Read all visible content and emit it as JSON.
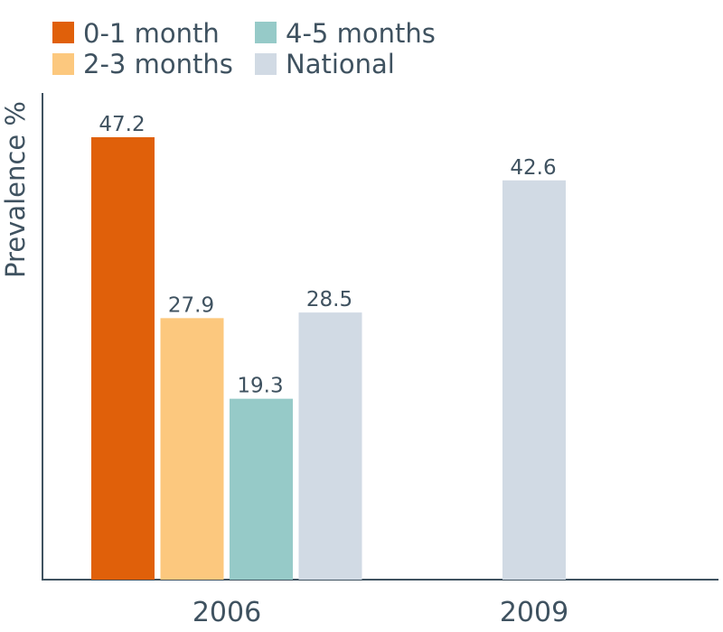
{
  "chart_data": {
    "type": "bar",
    "ylabel": "Prevalence %",
    "categories": [
      "2006",
      "2009"
    ],
    "ylim": [
      0,
      55
    ],
    "grid": false,
    "legend_position": "top-left",
    "series": [
      {
        "name": "0-1 month",
        "color": "#e0600a",
        "values": [
          47.2,
          null
        ]
      },
      {
        "name": "2-3 months",
        "color": "#fcc87e",
        "values": [
          27.9,
          null
        ]
      },
      {
        "name": "4-5 months",
        "color": "#96cac8",
        "values": [
          19.3,
          null
        ]
      },
      {
        "name": "National",
        "color": "#d1dae4",
        "values": [
          28.5,
          42.6
        ]
      }
    ]
  }
}
